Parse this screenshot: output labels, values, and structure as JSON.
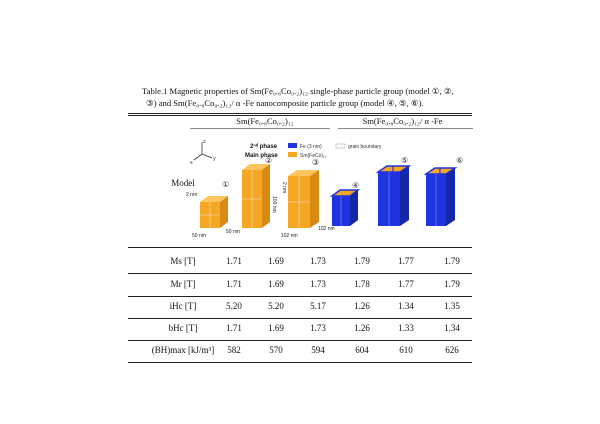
{
  "caption": {
    "line1": "Table.1 Magnetic properties of Sm(Fe₀.₈Co₀.₂)₁₂ single-phase particle group (model ①, ②,",
    "line2": "③) and Sm(Fe₀.₈Co₀.₂)₁₂/ α -Fe nanocomposite particle group (model ④, ⑤, ⑥)."
  },
  "headers": {
    "single": "Sm(Fe₀.₈Co₀.₂)₁₂",
    "nano": "Sm(Fe₀.₈Co₀.₂)₁₂/ α -Fe"
  },
  "model_row": {
    "label": "Model",
    "legend": {
      "second_phase": "2ⁿᵈ phase",
      "main_phase": "Main phase",
      "fe": "Fe (3 nm)",
      "smfeco": "Sm(FeCo)₁₂",
      "grain_boundary": "grain boundary"
    },
    "axes": {
      "z": "z",
      "y": "y",
      "x": "x"
    },
    "numbers": [
      "①",
      "②",
      "③",
      "④",
      "⑤",
      "⑥"
    ],
    "dims": {
      "gb": "2 nm",
      "w50a": "50 nm",
      "w50b": "50 nm",
      "h100": "100 nm",
      "gb2": "2 nm",
      "w102": "102 nm",
      "w102b": "102 nm"
    },
    "colors": {
      "orange": "#F5A623",
      "blue": "#1F33E0",
      "boundary": "#E8E8E8"
    }
  },
  "rows": [
    {
      "label": "Ms [T]",
      "values": [
        "1.71",
        "1.69",
        "1.73",
        "1.79",
        "1.77",
        "1.79"
      ]
    },
    {
      "label": "Mr [T]",
      "values": [
        "1.71",
        "1.69",
        "1.73",
        "1.78",
        "1.77",
        "1.79"
      ]
    },
    {
      "label": "iHc [T]",
      "values": [
        "5.20",
        "5.20",
        "5.17",
        "1.26",
        "1.34",
        "1.35"
      ]
    },
    {
      "label": "bHc [T]",
      "values": [
        "1.71",
        "1.69",
        "1.73",
        "1.26",
        "1.33",
        "1.34"
      ]
    },
    {
      "label": "(BH)max [kJ/m³]",
      "values": [
        "582",
        "570",
        "594",
        "604",
        "610",
        "626"
      ]
    }
  ]
}
